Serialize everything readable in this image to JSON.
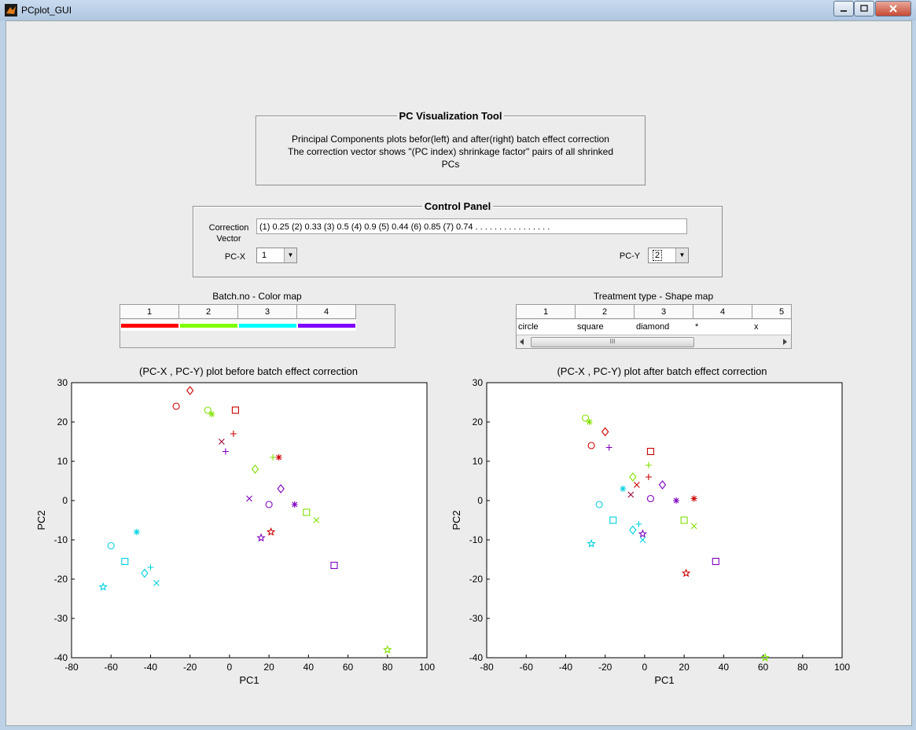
{
  "window": {
    "title": "PCplot_GUI"
  },
  "info_panel": {
    "title": "PC Visualization Tool",
    "line1": "Principal Components plots befor(left) and after(right) batch effect correction",
    "line2": "The correction vector shows \"(PC index) shrinkage factor\" pairs of all shrinked",
    "line3": "PCs"
  },
  "control_panel": {
    "title": "Control Panel",
    "correction_label_1": "Correction",
    "correction_label_2": "Vector",
    "correction_value": "(1) 0.25    (2) 0.33    (3) 0.5    (4) 0.9    (5) 0.44    (6) 0.85    (7) 0.74    .   .   .   .   .   .   .   .   .   .   .   .   .   .   .   .",
    "pcx_label": "PC-X",
    "pcx_value": "1",
    "pcy_label": "PC-Y",
    "pcy_value": "2"
  },
  "color_map": {
    "caption": "Batch.no - Color map",
    "columns": [
      "1",
      "2",
      "3",
      "4"
    ],
    "colors": [
      "#ff0000",
      "#80ff00",
      "#00ffff",
      "#8000ff"
    ]
  },
  "shape_map": {
    "caption": "Treatment type - Shape map",
    "columns": [
      "1",
      "2",
      "3",
      "4",
      "5"
    ],
    "values": [
      "circle",
      "square",
      "diamond",
      "*",
      "x"
    ],
    "scroll_thumb": "III"
  },
  "chart_data": [
    {
      "type": "scatter",
      "title": "(PC-X , PC-Y) plot before batch effect correction",
      "xlabel": "PC1",
      "ylabel": "PC2",
      "xlim": [
        -80,
        100
      ],
      "ylim": [
        -40,
        30
      ],
      "xticks": [
        "-80",
        "-60",
        "-40",
        "-20",
        "0",
        "20",
        "40",
        "60",
        "80",
        "100"
      ],
      "yticks": [
        "30",
        "20",
        "10",
        "0",
        "-10",
        "-20",
        "-30",
        "-40"
      ],
      "points": [
        {
          "x": -27,
          "y": 24,
          "marker": "circle",
          "color": "#cc0000"
        },
        {
          "x": -20,
          "y": 28,
          "marker": "diamond",
          "color": "#cc0000"
        },
        {
          "x": -11,
          "y": 23,
          "marker": "circle",
          "color": "#80e000"
        },
        {
          "x": -9,
          "y": 22,
          "marker": "asterisk",
          "color": "#80e000"
        },
        {
          "x": 3,
          "y": 23,
          "marker": "square",
          "color": "#cc0000"
        },
        {
          "x": 2,
          "y": 17,
          "marker": "plus",
          "color": "#cc0000"
        },
        {
          "x": -4,
          "y": 15,
          "marker": "x",
          "color": "#990033"
        },
        {
          "x": -2,
          "y": 12.5,
          "marker": "plus",
          "color": "#8000c0"
        },
        {
          "x": 22,
          "y": 11,
          "marker": "plus",
          "color": "#80e000"
        },
        {
          "x": 25,
          "y": 11,
          "marker": "asterisk",
          "color": "#cc0000"
        },
        {
          "x": 13,
          "y": 8,
          "marker": "diamond",
          "color": "#80e000"
        },
        {
          "x": 26,
          "y": 3,
          "marker": "diamond",
          "color": "#8000c0"
        },
        {
          "x": 10,
          "y": 0.5,
          "marker": "x",
          "color": "#8000c0"
        },
        {
          "x": 20,
          "y": -1,
          "marker": "circle",
          "color": "#8000c0"
        },
        {
          "x": 33,
          "y": -1,
          "marker": "asterisk",
          "color": "#8000c0"
        },
        {
          "x": 39,
          "y": -3,
          "marker": "square",
          "color": "#80e000"
        },
        {
          "x": 44,
          "y": -5,
          "marker": "x",
          "color": "#80e000"
        },
        {
          "x": 21,
          "y": -8,
          "marker": "star",
          "color": "#cc0000"
        },
        {
          "x": 16,
          "y": -9.5,
          "marker": "star",
          "color": "#8000c0"
        },
        {
          "x": -47,
          "y": -8,
          "marker": "asterisk",
          "color": "#00d0e0"
        },
        {
          "x": -60,
          "y": -11.5,
          "marker": "circle",
          "color": "#00d0e0"
        },
        {
          "x": -53,
          "y": -15.5,
          "marker": "square",
          "color": "#00d0e0"
        },
        {
          "x": -40,
          "y": -17,
          "marker": "plus",
          "color": "#00d0e0"
        },
        {
          "x": -43,
          "y": -18.5,
          "marker": "diamond",
          "color": "#00d0e0"
        },
        {
          "x": -37,
          "y": -21,
          "marker": "x",
          "color": "#00d0e0"
        },
        {
          "x": -64,
          "y": -22,
          "marker": "star",
          "color": "#00d0e0"
        },
        {
          "x": 53,
          "y": -16.5,
          "marker": "square",
          "color": "#8000c0"
        },
        {
          "x": 80,
          "y": -38,
          "marker": "star",
          "color": "#80e000"
        }
      ]
    },
    {
      "type": "scatter",
      "title": "(PC-X , PC-Y) plot after batch effect correction",
      "xlabel": "PC1",
      "ylabel": "PC2",
      "xlim": [
        -80,
        100
      ],
      "ylim": [
        -40,
        30
      ],
      "xticks": [
        "-80",
        "-60",
        "-40",
        "-20",
        "0",
        "20",
        "40",
        "60",
        "80",
        "100"
      ],
      "yticks": [
        "30",
        "20",
        "10",
        "0",
        "-10",
        "-20",
        "-30",
        "-40"
      ],
      "points": [
        {
          "x": -30,
          "y": 21,
          "marker": "circle",
          "color": "#80e000"
        },
        {
          "x": -28,
          "y": 20,
          "marker": "asterisk",
          "color": "#80e000"
        },
        {
          "x": -20,
          "y": 17.5,
          "marker": "diamond",
          "color": "#cc0000"
        },
        {
          "x": -27,
          "y": 14,
          "marker": "circle",
          "color": "#cc0000"
        },
        {
          "x": -18,
          "y": 13.5,
          "marker": "plus",
          "color": "#8000c0"
        },
        {
          "x": 3,
          "y": 12.5,
          "marker": "square",
          "color": "#cc0000"
        },
        {
          "x": 2,
          "y": 9,
          "marker": "plus",
          "color": "#80e000"
        },
        {
          "x": 2,
          "y": 6,
          "marker": "plus",
          "color": "#cc0000"
        },
        {
          "x": -6,
          "y": 6,
          "marker": "diamond",
          "color": "#80e000"
        },
        {
          "x": 9,
          "y": 4,
          "marker": "diamond",
          "color": "#8000c0"
        },
        {
          "x": -4,
          "y": 4,
          "marker": "x",
          "color": "#cc0000"
        },
        {
          "x": -11,
          "y": 3,
          "marker": "asterisk",
          "color": "#00d0e0"
        },
        {
          "x": -7,
          "y": 1.5,
          "marker": "x",
          "color": "#990033"
        },
        {
          "x": 3,
          "y": 0.5,
          "marker": "circle",
          "color": "#8000c0"
        },
        {
          "x": 16,
          "y": 0,
          "marker": "asterisk",
          "color": "#8000c0"
        },
        {
          "x": 25,
          "y": 0.5,
          "marker": "asterisk",
          "color": "#cc0000"
        },
        {
          "x": -23,
          "y": -1,
          "marker": "circle",
          "color": "#00d0e0"
        },
        {
          "x": -16,
          "y": -5,
          "marker": "square",
          "color": "#00d0e0"
        },
        {
          "x": 20,
          "y": -5,
          "marker": "square",
          "color": "#80e000"
        },
        {
          "x": 25,
          "y": -6.5,
          "marker": "x",
          "color": "#80e000"
        },
        {
          "x": -3,
          "y": -6,
          "marker": "plus",
          "color": "#00d0e0"
        },
        {
          "x": -6,
          "y": -7.5,
          "marker": "diamond",
          "color": "#00d0e0"
        },
        {
          "x": -1,
          "y": -8.5,
          "marker": "star",
          "color": "#8000c0"
        },
        {
          "x": -1,
          "y": -10,
          "marker": "x",
          "color": "#00d0e0"
        },
        {
          "x": -27,
          "y": -11,
          "marker": "star",
          "color": "#00d0e0"
        },
        {
          "x": 36,
          "y": -15.5,
          "marker": "square",
          "color": "#8000c0"
        },
        {
          "x": 21,
          "y": -18.5,
          "marker": "star",
          "color": "#cc0000"
        },
        {
          "x": 61,
          "y": -40,
          "marker": "star",
          "color": "#80e000"
        }
      ]
    }
  ]
}
